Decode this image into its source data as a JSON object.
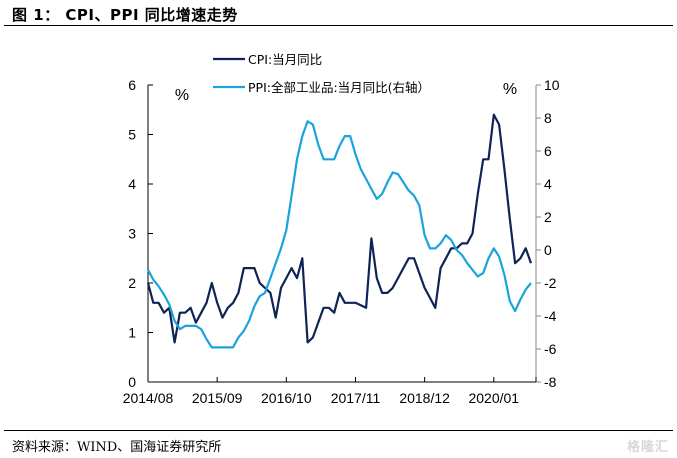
{
  "title": "图 1：  CPI、PPI 同比增速走势",
  "source": "资料来源：WIND、国海证券研究所",
  "watermark": "格隆汇",
  "chart_data": {
    "type": "line",
    "title": "CPI、PPI 同比增速走势",
    "xlabel": "",
    "ylabel": "%",
    "y2label": "%",
    "ylim": [
      0,
      6
    ],
    "y2lim": [
      -8,
      10
    ],
    "yticks": [
      0,
      1,
      2,
      3,
      4,
      5,
      6
    ],
    "y2ticks": [
      -8,
      -6,
      -4,
      -2,
      0,
      2,
      4,
      6,
      8,
      10
    ],
    "xtick_labels": [
      "2014/08",
      "2015/09",
      "2016/10",
      "2017/11",
      "2018/12",
      "2020/01"
    ],
    "grid": false,
    "legend_position": "top-center",
    "x": [
      "2014/08",
      "2014/09",
      "2014/10",
      "2014/11",
      "2014/12",
      "2015/01",
      "2015/02",
      "2015/03",
      "2015/04",
      "2015/05",
      "2015/06",
      "2015/07",
      "2015/08",
      "2015/09",
      "2015/10",
      "2015/11",
      "2015/12",
      "2016/01",
      "2016/02",
      "2016/03",
      "2016/04",
      "2016/05",
      "2016/06",
      "2016/07",
      "2016/08",
      "2016/09",
      "2016/10",
      "2016/11",
      "2016/12",
      "2017/01",
      "2017/02",
      "2017/03",
      "2017/04",
      "2017/05",
      "2017/06",
      "2017/07",
      "2017/08",
      "2017/09",
      "2017/10",
      "2017/11",
      "2017/12",
      "2018/01",
      "2018/02",
      "2018/03",
      "2018/04",
      "2018/05",
      "2018/06",
      "2018/07",
      "2018/08",
      "2018/09",
      "2018/10",
      "2018/11",
      "2018/12",
      "2019/01",
      "2019/02",
      "2019/03",
      "2019/04",
      "2019/05",
      "2019/06",
      "2019/07",
      "2019/08",
      "2019/09",
      "2019/10",
      "2019/11",
      "2019/12",
      "2020/01",
      "2020/02",
      "2020/03",
      "2020/04",
      "2020/05",
      "2020/06",
      "2020/07",
      "2020/08"
    ],
    "series": [
      {
        "name": "CPI:当月同比",
        "axis": "left",
        "color": "#0f2357",
        "values": [
          2.0,
          1.6,
          1.6,
          1.4,
          1.5,
          0.8,
          1.4,
          1.4,
          1.5,
          1.2,
          1.4,
          1.6,
          2.0,
          1.6,
          1.3,
          1.5,
          1.6,
          1.8,
          2.3,
          2.3,
          2.3,
          2.0,
          1.9,
          1.8,
          1.3,
          1.9,
          2.1,
          2.3,
          2.1,
          2.5,
          0.8,
          0.9,
          1.2,
          1.5,
          1.5,
          1.4,
          1.8,
          1.6,
          1.6,
          1.6,
          1.55,
          1.5,
          2.9,
          2.1,
          1.8,
          1.8,
          1.9,
          2.1,
          2.3,
          2.5,
          2.5,
          2.2,
          1.9,
          1.7,
          1.5,
          2.3,
          2.5,
          2.7,
          2.7,
          2.8,
          2.8,
          3.0,
          3.8,
          4.5,
          4.5,
          5.4,
          5.2,
          4.3,
          3.3,
          2.4,
          2.5,
          2.7,
          2.4
        ]
      },
      {
        "name": "PPI:全部工业品:当月同比(右轴）",
        "axis": "right",
        "color": "#1aa3dc",
        "values": [
          -1.2,
          -1.8,
          -2.2,
          -2.7,
          -3.3,
          -4.3,
          -4.8,
          -4.6,
          -4.6,
          -4.6,
          -4.8,
          -5.4,
          -5.9,
          -5.9,
          -5.9,
          -5.9,
          -5.9,
          -5.3,
          -4.9,
          -4.3,
          -3.4,
          -2.8,
          -2.6,
          -1.7,
          -0.8,
          0.1,
          1.2,
          3.3,
          5.5,
          6.9,
          7.8,
          7.6,
          6.4,
          5.5,
          5.5,
          5.5,
          6.3,
          6.9,
          6.9,
          5.8,
          4.9,
          4.3,
          3.7,
          3.1,
          3.4,
          4.1,
          4.7,
          4.6,
          4.1,
          3.6,
          3.3,
          2.7,
          0.9,
          0.1,
          0.1,
          0.4,
          0.9,
          0.6,
          0.0,
          -0.3,
          -0.8,
          -1.2,
          -1.6,
          -1.4,
          -0.5,
          0.1,
          -0.4,
          -1.5,
          -3.1,
          -3.7,
          -3.0,
          -2.4,
          -2.0
        ]
      }
    ]
  }
}
